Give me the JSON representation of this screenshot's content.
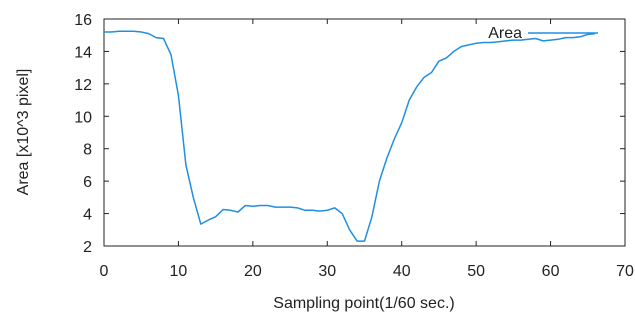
{
  "chart_data": {
    "type": "line",
    "title": "",
    "xlabel": "Sampling point(1/60 sec.)",
    "ylabel": "Area [x10^3 pixel]",
    "xlim": [
      0,
      70
    ],
    "ylim": [
      2,
      16
    ],
    "xticks": [
      0,
      10,
      20,
      30,
      40,
      50,
      60,
      70
    ],
    "yticks": [
      2,
      4,
      6,
      8,
      10,
      12,
      14,
      16
    ],
    "grid": false,
    "legend": "top-right",
    "series": [
      {
        "name": "Area",
        "color": "#1f8fe0",
        "x": [
          0,
          1,
          2,
          3,
          4,
          5,
          6,
          7,
          8,
          9,
          10,
          11,
          12,
          13,
          14,
          15,
          16,
          17,
          18,
          19,
          20,
          21,
          22,
          23,
          24,
          25,
          26,
          27,
          28,
          29,
          30,
          31,
          32,
          33,
          34,
          35,
          36,
          37,
          38,
          39,
          40,
          41,
          42,
          43,
          44,
          45,
          46,
          47,
          48,
          49,
          50,
          51,
          52,
          53,
          54,
          55,
          56,
          57,
          58,
          59,
          60,
          61,
          62,
          63,
          64,
          65,
          66
        ],
        "y": [
          15.2,
          15.2,
          15.25,
          15.25,
          15.25,
          15.2,
          15.1,
          14.85,
          14.8,
          13.8,
          11.3,
          7.0,
          5.0,
          3.35,
          3.6,
          3.8,
          4.25,
          4.2,
          4.1,
          4.5,
          4.45,
          4.5,
          4.5,
          4.4,
          4.4,
          4.4,
          4.35,
          4.2,
          4.2,
          4.15,
          4.2,
          4.35,
          4.0,
          3.0,
          2.3,
          2.3,
          3.8,
          6.0,
          7.4,
          8.6,
          9.6,
          11.0,
          11.8,
          12.4,
          12.7,
          13.4,
          13.6,
          14.0,
          14.3,
          14.4,
          14.5,
          14.55,
          14.55,
          14.6,
          14.65,
          14.7,
          14.7,
          14.75,
          14.8,
          14.65,
          14.7,
          14.75,
          14.85,
          14.85,
          14.9,
          15.05,
          15.1
        ]
      }
    ]
  }
}
